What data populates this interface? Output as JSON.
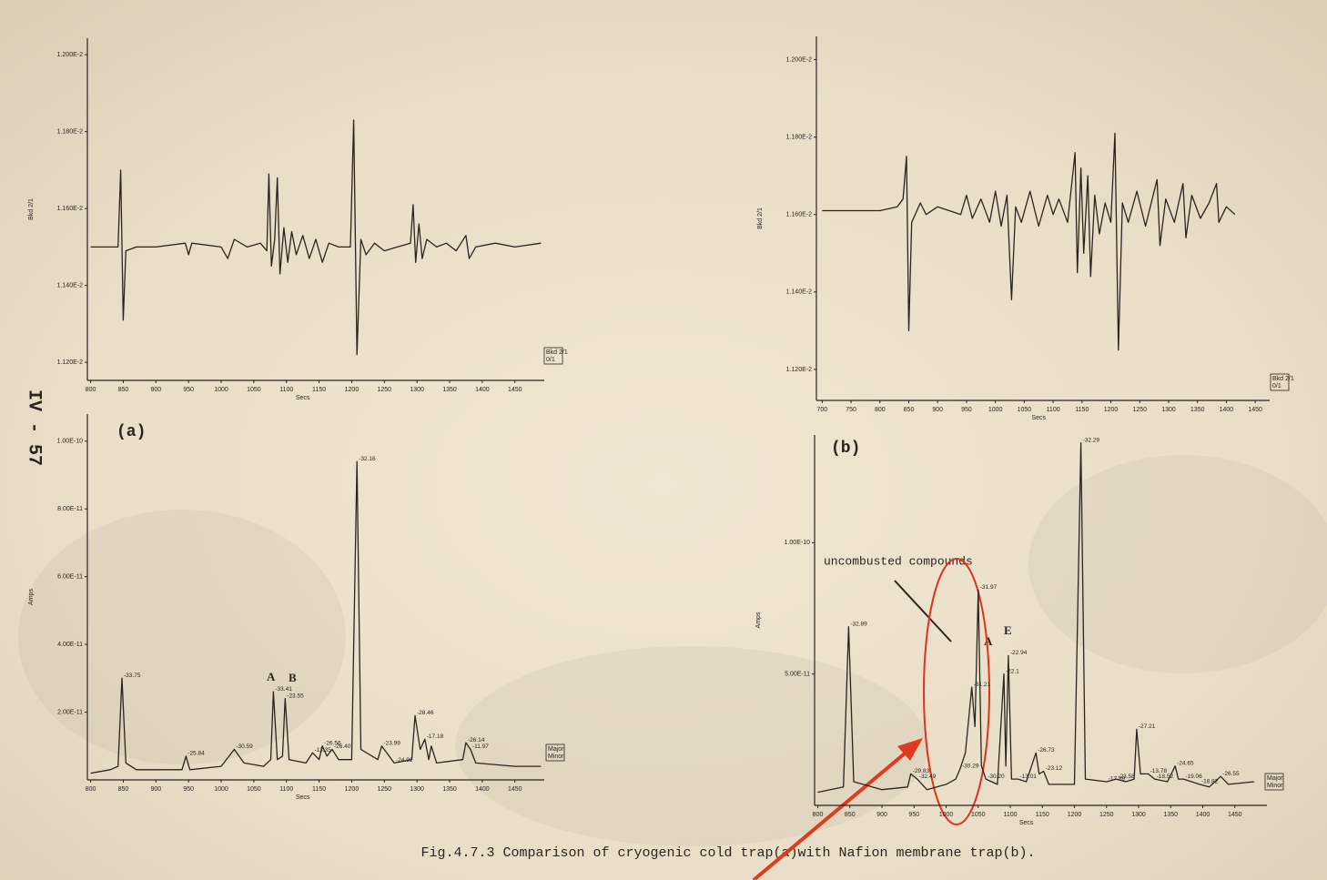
{
  "page_label": "IV - 57",
  "caption": "Fig.4.7.3 Comparison of cryogenic cold trap(a)with Nafion membrane trap(b).",
  "chart_data": [
    {
      "type": "line",
      "ylabel": "Bkd 2/1",
      "xlabel": "Secs",
      "legend": [
        "Bkd 2/1",
        "0/1"
      ],
      "color": "#2a2420",
      "xlim": [
        795,
        1495
      ],
      "xticks": [
        800,
        850,
        900,
        950,
        1000,
        1050,
        1100,
        1150,
        1200,
        1250,
        1300,
        1350,
        1400,
        1450
      ],
      "ylim": [
        0.011153,
        0.012043
      ],
      "yticks": [
        {
          "value": 0.0112,
          "label": "1.120E-2"
        },
        {
          "value": 0.0114,
          "label": "1.140E-2"
        },
        {
          "value": 0.0116,
          "label": "1.160E-2"
        },
        {
          "value": 0.0118,
          "label": "1.180E-2"
        },
        {
          "value": 0.012,
          "label": "1.200E-2"
        }
      ],
      "x": [
        800,
        830,
        842,
        846,
        850,
        854,
        870,
        900,
        945,
        950,
        955,
        1000,
        1010,
        1020,
        1040,
        1060,
        1070,
        1073,
        1077,
        1082,
        1086,
        1090,
        1096,
        1102,
        1108,
        1115,
        1125,
        1135,
        1145,
        1155,
        1165,
        1180,
        1198,
        1203,
        1208,
        1214,
        1222,
        1235,
        1250,
        1270,
        1290,
        1294,
        1298,
        1303,
        1308,
        1315,
        1330,
        1345,
        1360,
        1375,
        1380,
        1390,
        1420,
        1450,
        1490
      ],
      "values": [
        0.0115,
        0.0115,
        0.0115,
        0.0117,
        0.01131,
        0.01149,
        0.0115,
        0.0115,
        0.01151,
        0.01148,
        0.01151,
        0.0115,
        0.01147,
        0.01152,
        0.0115,
        0.01151,
        0.01149,
        0.01169,
        0.01145,
        0.01152,
        0.01168,
        0.01143,
        0.01155,
        0.01146,
        0.01154,
        0.01148,
        0.01153,
        0.01147,
        0.01152,
        0.01146,
        0.01151,
        0.0115,
        0.0115,
        0.01183,
        0.01122,
        0.01152,
        0.01148,
        0.01151,
        0.01149,
        0.0115,
        0.01151,
        0.01161,
        0.01146,
        0.01156,
        0.01147,
        0.01152,
        0.0115,
        0.01151,
        0.01149,
        0.01153,
        0.01147,
        0.0115,
        0.01151,
        0.0115,
        0.01151
      ]
    },
    {
      "type": "line",
      "ylabel": "Amps",
      "xlabel": "Secs",
      "legend": [
        "Major",
        "Minor"
      ],
      "color": "#2a2420",
      "panel_label": "(a)",
      "annotations": [
        "A",
        "B"
      ],
      "xlim": [
        795,
        1495
      ],
      "xticks": [
        800,
        850,
        900,
        950,
        1000,
        1050,
        1100,
        1150,
        1200,
        1250,
        1300,
        1350,
        1400,
        1450
      ],
      "ylim": [
        0,
        1.08e-10
      ],
      "yticks": [
        {
          "value": 2e-11,
          "label": "2.00E-11"
        },
        {
          "value": 4e-11,
          "label": "4.00E-11"
        },
        {
          "value": 6e-11,
          "label": "6.00E-11"
        },
        {
          "value": 8e-11,
          "label": "8.00E-11"
        },
        {
          "value": 1e-10,
          "label": "1.00E-10"
        }
      ],
      "x": [
        800,
        830,
        842,
        848,
        854,
        870,
        940,
        946,
        952,
        1000,
        1020,
        1035,
        1065,
        1076,
        1080,
        1086,
        1094,
        1098,
        1104,
        1130,
        1140,
        1150,
        1155,
        1162,
        1170,
        1180,
        1200,
        1208,
        1214,
        1240,
        1246,
        1265,
        1292,
        1297,
        1305,
        1312,
        1318,
        1322,
        1330,
        1370,
        1375,
        1382,
        1390,
        1450,
        1490
      ],
      "values": [
        2e-12,
        3e-12,
        4e-12,
        3e-11,
        5e-12,
        3e-12,
        3e-12,
        7e-12,
        3e-12,
        4e-12,
        9e-12,
        5e-12,
        4e-12,
        6e-12,
        2.6e-11,
        6e-12,
        7e-12,
        2.4e-11,
        6e-12,
        5e-12,
        8e-12,
        6e-12,
        1e-11,
        7e-12,
        9e-12,
        6e-12,
        6e-12,
        9.4e-11,
        9e-12,
        6e-12,
        1e-11,
        5e-12,
        6e-12,
        1.9e-11,
        9e-12,
        1.2e-11,
        6e-12,
        1e-11,
        5e-12,
        6e-12,
        1.1e-11,
        9e-12,
        5e-12,
        4e-12,
        4e-12
      ],
      "value_labels": [
        null,
        null,
        null,
        "-33.75",
        null,
        null,
        null,
        "-25.84",
        null,
        null,
        "-30.59",
        null,
        null,
        null,
        "-33.41",
        null,
        null,
        "-23.55",
        null,
        null,
        "-13.35",
        null,
        "-26.56",
        null,
        "-26.40",
        null,
        null,
        "-32.16",
        null,
        null,
        "-23.99",
        "-24.92",
        null,
        "-28.46",
        null,
        "-17.18",
        null,
        null,
        null,
        null,
        "-26.14",
        "-11.97",
        null,
        null,
        null
      ]
    },
    {
      "type": "line",
      "ylabel": "Bkd 2/1",
      "xlabel": "Secs",
      "legend": [
        "Bkd 2/1",
        "0/1"
      ],
      "color": "#2a2420",
      "xlim": [
        690,
        1475
      ],
      "xticks": [
        700,
        750,
        800,
        850,
        900,
        950,
        1000,
        1050,
        1100,
        1150,
        1200,
        1250,
        1300,
        1350,
        1400,
        1450
      ],
      "ylim": [
        0.01112,
        0.01206
      ],
      "yticks": [
        {
          "value": 0.0112,
          "label": "1.120E-2"
        },
        {
          "value": 0.0114,
          "label": "1.140E-2"
        },
        {
          "value": 0.0116,
          "label": "1.160E-2"
        },
        {
          "value": 0.0118,
          "label": "1.180E-2"
        },
        {
          "value": 0.012,
          "label": "1.200E-2"
        }
      ],
      "x": [
        700,
        750,
        800,
        830,
        840,
        846,
        850,
        855,
        870,
        880,
        900,
        920,
        940,
        950,
        960,
        975,
        990,
        1000,
        1010,
        1020,
        1028,
        1035,
        1045,
        1060,
        1075,
        1090,
        1100,
        1110,
        1125,
        1138,
        1142,
        1148,
        1153,
        1160,
        1165,
        1172,
        1180,
        1190,
        1200,
        1207,
        1213,
        1220,
        1230,
        1245,
        1260,
        1270,
        1280,
        1285,
        1295,
        1310,
        1325,
        1330,
        1340,
        1355,
        1370,
        1383,
        1387,
        1400,
        1415
      ],
      "values": [
        0.01161,
        0.01161,
        0.01161,
        0.01162,
        0.01164,
        0.01175,
        0.0113,
        0.01158,
        0.01163,
        0.0116,
        0.01162,
        0.01161,
        0.0116,
        0.01165,
        0.01159,
        0.01164,
        0.01158,
        0.01166,
        0.01157,
        0.01165,
        0.01138,
        0.01162,
        0.01158,
        0.01166,
        0.01157,
        0.01165,
        0.0116,
        0.01164,
        0.01158,
        0.01176,
        0.01145,
        0.01172,
        0.0115,
        0.0117,
        0.01144,
        0.01165,
        0.01155,
        0.01163,
        0.01158,
        0.01181,
        0.01125,
        0.01163,
        0.01158,
        0.01166,
        0.01157,
        0.01163,
        0.01169,
        0.01152,
        0.01164,
        0.01158,
        0.01168,
        0.01154,
        0.01165,
        0.01159,
        0.01163,
        0.01168,
        0.01158,
        0.01162,
        0.0116
      ]
    },
    {
      "type": "line",
      "ylabel": "Amps",
      "xlabel": "Secs",
      "legend": [
        "Major",
        "Minor"
      ],
      "color": "#2a2420",
      "panel_label": "(b)",
      "annotations": [
        "A",
        "E",
        "uncombusted compounds"
      ],
      "xlim": [
        795,
        1500
      ],
      "xticks": [
        800,
        850,
        900,
        950,
        1000,
        1050,
        1100,
        1150,
        1200,
        1250,
        1300,
        1350,
        1400,
        1450
      ],
      "ylim": [
        0,
        1.41e-10
      ],
      "yticks": [
        {
          "value": 5e-11,
          "label": "5.00E-11"
        },
        {
          "value": 1e-10,
          "label": "1.00E-10"
        }
      ],
      "x": [
        800,
        840,
        848,
        856,
        900,
        940,
        945,
        955,
        970,
        1000,
        1015,
        1022,
        1030,
        1040,
        1045,
        1050,
        1055,
        1062,
        1080,
        1090,
        1093,
        1097,
        1102,
        1112,
        1125,
        1140,
        1145,
        1152,
        1160,
        1200,
        1210,
        1217,
        1250,
        1265,
        1280,
        1293,
        1297,
        1303,
        1315,
        1325,
        1345,
        1357,
        1362,
        1370,
        1395,
        1410,
        1428,
        1440,
        1480
      ],
      "values": [
        5e-12,
        7e-12,
        6.8e-11,
        9e-12,
        6e-12,
        7e-12,
        1.2e-11,
        1e-11,
        6e-12,
        8e-12,
        1e-11,
        1.4e-11,
        2e-11,
        4.5e-11,
        3e-11,
        8.2e-11,
        1.5e-11,
        1e-11,
        8e-12,
        5e-11,
        1.5e-11,
        5.7e-11,
        1e-11,
        1e-11,
        9e-12,
        2e-11,
        1.2e-11,
        1.3e-11,
        8e-12,
        8e-12,
        1.38e-10,
        1e-11,
        9e-12,
        1e-11,
        9e-12,
        1e-11,
        2.9e-11,
        1.2e-11,
        1.2e-11,
        1e-11,
        9e-12,
        1.5e-11,
        1e-11,
        1e-11,
        8e-12,
        7e-12,
        1.1e-11,
        8e-12,
        9e-12
      ],
      "value_labels": [
        null,
        null,
        "-32.89",
        null,
        null,
        null,
        "-29.83",
        "-32.49",
        null,
        null,
        null,
        "-30.29",
        null,
        "-31.21",
        null,
        "-31.97",
        null,
        "-30.20",
        null,
        "-22.1",
        null,
        "-22.94",
        null,
        "-13.01",
        null,
        "-26.73",
        null,
        "-23.12",
        null,
        null,
        "-32.29",
        null,
        "-17.89",
        "-23.58",
        null,
        null,
        "-27.21",
        null,
        "-13.78",
        "-18.52",
        null,
        "-24.65",
        null,
        "-19.06",
        "-18.82",
        null,
        "-26.55",
        null,
        null
      ]
    }
  ]
}
